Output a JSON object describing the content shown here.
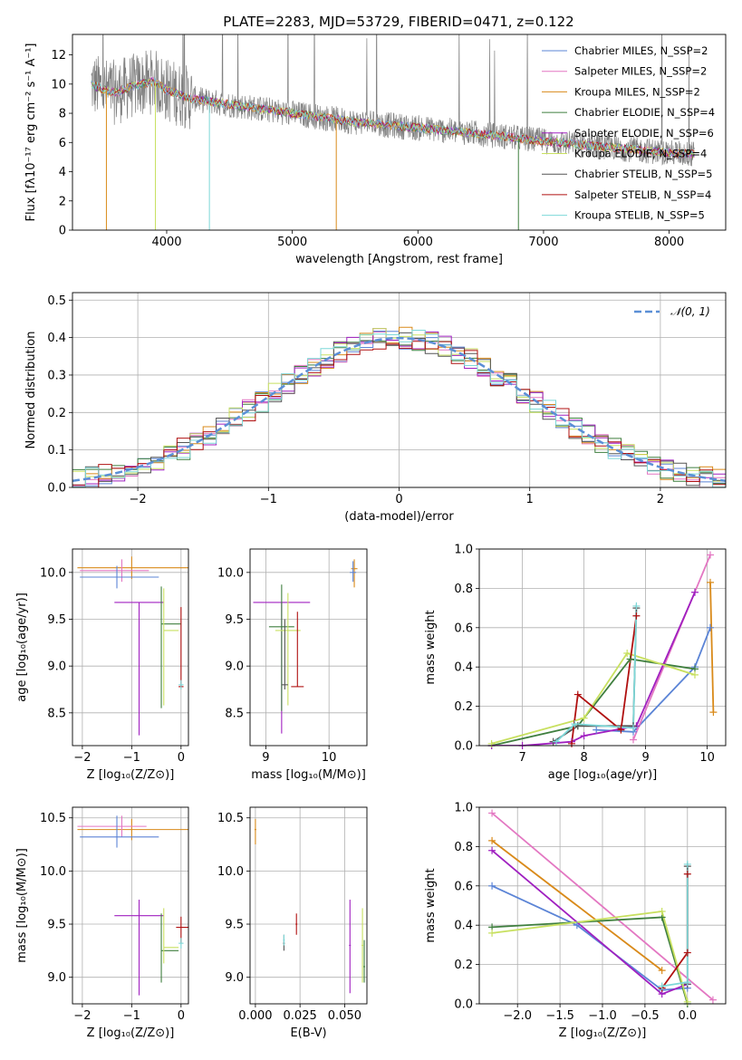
{
  "figure_title": "PLATE=2283, MJD=53729, FIBERID=0471, z=0.122",
  "chart_data": [
    {
      "id": "spectrum",
      "type": "line",
      "title": "PLATE=2283, MJD=53729, FIBERID=0471, z=0.122",
      "xlabel": "wavelength [Angstrom, rest frame]",
      "ylabel": "Flux [fλ10⁻¹⁷ erg cm⁻² s⁻¹ A⁻¹]",
      "xlim": [
        3250,
        8450
      ],
      "ylim": [
        0,
        13.4
      ],
      "xticks": [
        4000,
        5000,
        6000,
        7000,
        8000
      ],
      "yticks": [
        0,
        2,
        4,
        6,
        8,
        10,
        12
      ],
      "grid": false,
      "legend_position": "top-right",
      "legend": [
        {
          "label": "Chabrier MILES, N_SSP=2",
          "color": "#5b84d6"
        },
        {
          "label": "Salpeter MILES, N_SSP=2",
          "color": "#e377c2"
        },
        {
          "label": "Kroupa MILES, N_SSP=2",
          "color": "#d98a1a"
        },
        {
          "label": "Chabrier ELODIE, N_SSP=4",
          "color": "#3f7f3f"
        },
        {
          "label": "Salpeter ELODIE, N_SSP=6",
          "color": "#a020c0"
        },
        {
          "label": "Kroupa ELODIE, N_SSP=4",
          "color": "#c8e060"
        },
        {
          "label": "Chabrier STELIB, N_SSP=5",
          "color": "#555555"
        },
        {
          "label": "Salpeter STELIB, N_SSP=4",
          "color": "#b01010"
        },
        {
          "label": "Kroupa STELIB, N_SSP=5",
          "color": "#7dd8d8"
        }
      ],
      "continuum_x": [
        3400,
        3500,
        3600,
        3700,
        3800,
        3900,
        4000,
        4200,
        4500,
        5000,
        5500,
        6000,
        6500,
        7000,
        7500,
        8000,
        8200
      ],
      "continuum_y": [
        10.0,
        9.6,
        9.4,
        9.8,
        10.0,
        10.2,
        9.6,
        9.0,
        8.6,
        8.0,
        7.4,
        7.0,
        6.6,
        6.1,
        5.7,
        5.3,
        5.2
      ],
      "absorption_lines_x": [
        3520,
        3910,
        4340,
        5350,
        6800
      ]
    },
    {
      "id": "residuals",
      "type": "bar",
      "xlabel": "(data-model)/error",
      "ylabel": "Normed distribution",
      "xlim": [
        -2.5,
        2.5
      ],
      "ylim": [
        0,
        0.52
      ],
      "xticks": [
        -2,
        -1,
        0,
        1,
        2
      ],
      "yticks": [
        0.0,
        0.1,
        0.2,
        0.3,
        0.4,
        0.5
      ],
      "grid": true,
      "legend_position": "top-right",
      "legend": [
        {
          "label": "𝒩(0, 1)",
          "color": "#5b8fd6"
        }
      ],
      "bin_width": 0.1
    },
    {
      "id": "age-vs-Z",
      "type": "scatter",
      "xlabel": "Z [log₁₀(Z/Z⊙)]",
      "ylabel": "age  [log₁₀(age/yr)]",
      "xlim": [
        -2.2,
        0.15
      ],
      "ylim": [
        8.15,
        10.25
      ],
      "xticks": [
        -2,
        -1,
        0
      ],
      "yticks": [
        8.5,
        9.0,
        9.5,
        10.0
      ],
      "grid": true
    },
    {
      "id": "age-vs-mass",
      "type": "scatter",
      "xlabel": "mass [log₁₀(M/M⊙)]",
      "ylabel": "",
      "xlim": [
        8.75,
        10.6
      ],
      "ylim": [
        8.15,
        10.25
      ],
      "xticks": [
        9,
        10
      ],
      "yticks": [
        8.5,
        9.0,
        9.5,
        10.0
      ],
      "grid": true
    },
    {
      "id": "massweight-vs-age",
      "type": "line",
      "xlabel": "age  [log₁₀(age/yr)]",
      "ylabel": "mass weight",
      "xlim": [
        6.3,
        10.3
      ],
      "ylim": [
        0.0,
        1.0
      ],
      "xticks": [
        7,
        8,
        9,
        10
      ],
      "yticks": [
        0.0,
        0.2,
        0.4,
        0.6,
        0.8,
        1.0
      ],
      "grid": true,
      "series": [
        {
          "color": "#5b84d6",
          "x": [
            8.2,
            8.8,
            9.8,
            10.05
          ],
          "y": [
            0.08,
            0.07,
            0.4,
            0.6
          ]
        },
        {
          "color": "#e377c2",
          "x": [
            8.8,
            10.05
          ],
          "y": [
            0.03,
            0.97
          ]
        },
        {
          "color": "#d98a1a",
          "x": [
            10.05,
            10.1
          ],
          "y": [
            0.83,
            0.17
          ]
        },
        {
          "color": "#3f7f3f",
          "x": [
            6.5,
            7.9,
            8.75,
            9.8
          ],
          "y": [
            0.0,
            0.1,
            0.44,
            0.39
          ]
        },
        {
          "color": "#a020c0",
          "x": [
            6.5,
            7.0,
            7.8,
            8.0,
            8.85,
            9.8
          ],
          "y": [
            0.0,
            0.0,
            0.02,
            0.05,
            0.1,
            0.78
          ]
        },
        {
          "color": "#c8e060",
          "x": [
            6.5,
            8.0,
            8.7,
            9.8
          ],
          "y": [
            0.01,
            0.14,
            0.47,
            0.36
          ]
        },
        {
          "color": "#555555",
          "x": [
            7.5,
            7.9,
            8.8,
            8.85
          ],
          "y": [
            0.02,
            0.1,
            0.1,
            0.7
          ]
        },
        {
          "color": "#b01010",
          "x": [
            7.8,
            7.9,
            8.6,
            8.85
          ],
          "y": [
            0.01,
            0.26,
            0.08,
            0.66
          ]
        },
        {
          "color": "#7dd8d8",
          "x": [
            7.55,
            7.85,
            8.8,
            8.85
          ],
          "y": [
            0.02,
            0.11,
            0.09,
            0.71
          ]
        }
      ]
    },
    {
      "id": "mass-vs-Z",
      "type": "scatter",
      "xlabel": "Z [log₁₀(Z/Z⊙)]",
      "ylabel": "mass [log₁₀(M/M⊙)]",
      "xlim": [
        -2.2,
        0.15
      ],
      "ylim": [
        8.75,
        10.6
      ],
      "xticks": [
        -2,
        -1,
        0
      ],
      "yticks": [
        9.0,
        9.5,
        10.0,
        10.5
      ],
      "grid": true
    },
    {
      "id": "mass-vs-EBV",
      "type": "scatter",
      "xlabel": "E(B-V)",
      "ylabel": "",
      "xlim": [
        -0.003,
        0.0625
      ],
      "ylim": [
        8.75,
        10.6
      ],
      "xticks": [
        0.0,
        0.025,
        0.05
      ],
      "yticks": [
        9.0,
        9.5,
        10.0,
        10.5
      ],
      "grid": true
    },
    {
      "id": "massweight-vs-Z",
      "type": "line",
      "xlabel": "Z [log₁₀(Z/Z⊙)]",
      "ylabel": "mass weight",
      "xlim": [
        -2.45,
        0.45
      ],
      "ylim": [
        0.0,
        1.0
      ],
      "xticks": [
        -2.0,
        -1.5,
        -1.0,
        -0.5,
        0.0
      ],
      "yticks": [
        0.0,
        0.2,
        0.4,
        0.6,
        0.8,
        1.0
      ],
      "grid": true,
      "series": [
        {
          "color": "#5b84d6",
          "x": [
            -2.3,
            -1.3,
            -0.3,
            0.0
          ],
          "y": [
            0.6,
            0.4,
            0.07,
            0.08
          ]
        },
        {
          "color": "#e377c2",
          "x": [
            -2.3,
            0.3
          ],
          "y": [
            0.97,
            0.02
          ]
        },
        {
          "color": "#d98a1a",
          "x": [
            -2.3,
            -0.3
          ],
          "y": [
            0.83,
            0.17
          ]
        },
        {
          "color": "#3f7f3f",
          "x": [
            -2.3,
            -0.3,
            0.0
          ],
          "y": [
            0.39,
            0.44,
            0.0
          ]
        },
        {
          "color": "#a020c0",
          "x": [
            -2.3,
            -0.3,
            0.0
          ],
          "y": [
            0.78,
            0.05,
            0.1
          ]
        },
        {
          "color": "#c8e060",
          "x": [
            -2.3,
            -0.3,
            0.0
          ],
          "y": [
            0.36,
            0.47,
            0.01
          ]
        },
        {
          "color": "#555555",
          "x": [
            0.0,
            0.0
          ],
          "y": [
            0.1,
            0.7
          ]
        },
        {
          "color": "#b01010",
          "x": [
            -0.3,
            0.0,
            0.0
          ],
          "y": [
            0.08,
            0.26,
            0.66
          ]
        },
        {
          "color": "#7dd8d8",
          "x": [
            -0.3,
            0.0,
            0.0
          ],
          "y": [
            0.09,
            0.11,
            0.71
          ]
        }
      ]
    }
  ]
}
